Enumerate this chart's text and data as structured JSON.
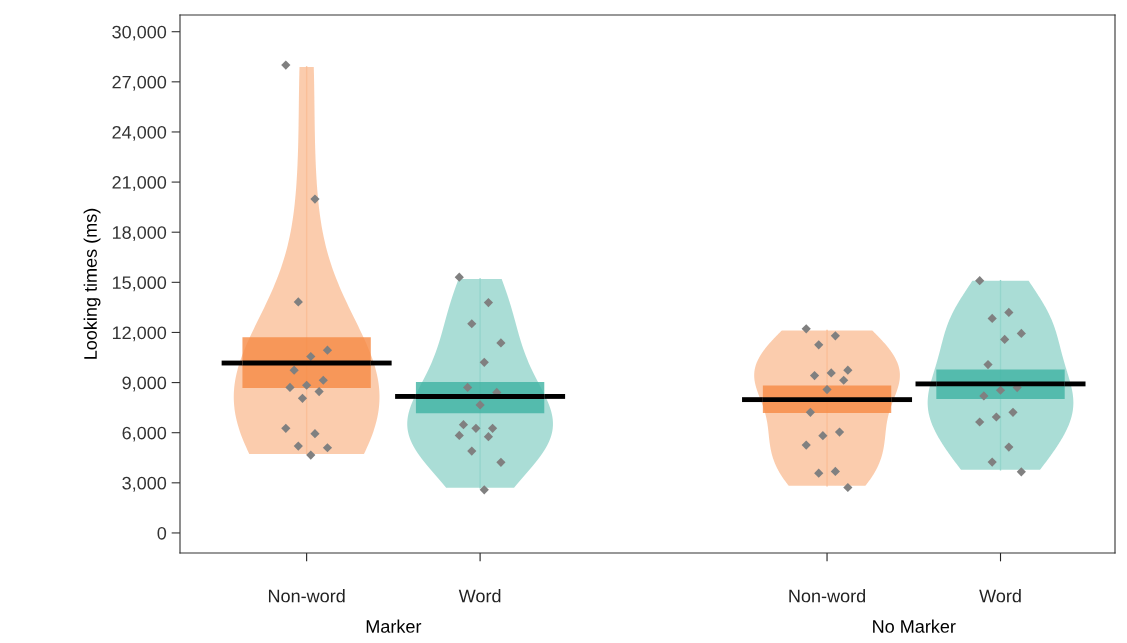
{
  "chart_data": {
    "type": "box",
    "ylabel": "Looking times (ms)",
    "categories": [
      "Non-word",
      "Word",
      null,
      "Non-word",
      "Word"
    ],
    "ylim": [
      -1200,
      31000
    ],
    "yticks": [
      {
        "value": 0,
        "label": "0"
      },
      {
        "value": 3000,
        "label": "3,000"
      },
      {
        "value": 6000,
        "label": "6,000"
      },
      {
        "value": 9000,
        "label": "9,000"
      },
      {
        "value": 12000,
        "label": "12,000"
      },
      {
        "value": 15000,
        "label": "15,000"
      },
      {
        "value": 18000,
        "label": "18,000"
      },
      {
        "value": 21000,
        "label": "21,000"
      },
      {
        "value": 24000,
        "label": "24,000"
      },
      {
        "value": 27000,
        "label": "27,000"
      },
      {
        "value": 30000,
        "label": "30,000"
      }
    ],
    "annotations": [
      "Marker",
      "No Marker"
    ],
    "colors": [
      "#f68a44",
      "#3fb3a2",
      null,
      "#f68a44",
      "#3fb3a2"
    ],
    "boxes": [
      {
        "low": 4730,
        "q1": 8680,
        "q3": 11710,
        "high": 27890,
        "mean": 10170
      },
      {
        "low": 2700,
        "q1": 7170,
        "q3": 9030,
        "high": 15200,
        "mean": 8170
      },
      null,
      {
        "low": 2820,
        "q1": 7180,
        "q3": 8820,
        "high": 12120,
        "mean": 7980
      },
      {
        "low": 3780,
        "q1": 8020,
        "q3": 9780,
        "high": 15100,
        "mean": 8920
      }
    ],
    "grid": false,
    "series": [
      {
        "type": "scatter",
        "marker": "diamond",
        "color": "#808080",
        "values": [
          28000,
          15310,
          null,
          12220,
          15100
        ]
      },
      {
        "type": "scatter",
        "marker": "diamond",
        "color": "#808080",
        "values": [
          19980,
          13790,
          null,
          11800,
          13200
        ]
      },
      {
        "type": "scatter",
        "marker": "diamond",
        "color": "#808080",
        "values": [
          13830,
          12520,
          null,
          11260,
          12840
        ]
      },
      {
        "type": "scatter",
        "marker": "diamond",
        "color": "#808080",
        "values": [
          10940,
          11370,
          null,
          9740,
          11940
        ]
      },
      {
        "type": "scatter",
        "marker": "diamond",
        "color": "#808080",
        "values": [
          10560,
          10210,
          null,
          9580,
          11580
        ]
      },
      {
        "type": "scatter",
        "marker": "diamond",
        "color": "#808080",
        "values": [
          9740,
          8710,
          null,
          9420,
          10080
        ]
      },
      {
        "type": "scatter",
        "marker": "diamond",
        "color": "#808080",
        "values": [
          9140,
          8410,
          null,
          9140,
          8700
        ]
      },
      {
        "type": "scatter",
        "marker": "diamond",
        "color": "#808080",
        "values": [
          8840,
          7660,
          null,
          8580,
          8540
        ]
      },
      {
        "type": "scatter",
        "marker": "diamond",
        "color": "#808080",
        "values": [
          8710,
          6480,
          null,
          7220,
          8200
        ]
      },
      {
        "type": "scatter",
        "marker": "diamond",
        "color": "#808080",
        "values": [
          8460,
          6260,
          null,
          6040,
          7220
        ]
      },
      {
        "type": "scatter",
        "marker": "diamond",
        "color": "#808080",
        "values": [
          8060,
          6260,
          null,
          5820,
          6940
        ]
      },
      {
        "type": "scatter",
        "marker": "diamond",
        "color": "#808080",
        "values": [
          6260,
          5840,
          null,
          5260,
          6640
        ]
      },
      {
        "type": "scatter",
        "marker": "diamond",
        "color": "#808080",
        "values": [
          5940,
          5760,
          null,
          3680,
          5140
        ]
      },
      {
        "type": "scatter",
        "marker": "diamond",
        "color": "#808080",
        "values": [
          5200,
          4900,
          null,
          3580,
          4240
        ]
      },
      {
        "type": "scatter",
        "marker": "diamond",
        "color": "#808080",
        "values": [
          5100,
          4230,
          null,
          2720,
          3660
        ]
      },
      {
        "type": "scatter",
        "marker": "diamond",
        "color": "#808080",
        "values": [
          4660,
          2580,
          null,
          null,
          null
        ]
      }
    ]
  }
}
